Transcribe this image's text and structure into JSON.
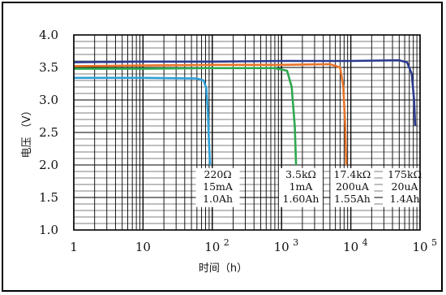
{
  "chart_data": {
    "type": "line",
    "xlabel": "时间（h）",
    "ylabel": "电压 （V）",
    "xscale": "log",
    "xlim": [
      1,
      100000
    ],
    "ylim": [
      1.0,
      4.0
    ],
    "grid": true,
    "x_ticks": [
      {
        "base": "1",
        "sup": ""
      },
      {
        "base": "10",
        "sup": ""
      },
      {
        "base": "10",
        "sup": "2"
      },
      {
        "base": "10",
        "sup": "3"
      },
      {
        "base": "10",
        "sup": "4"
      },
      {
        "base": "10",
        "sup": "5"
      }
    ],
    "y_ticks": [
      "1.0",
      "1.5",
      "2.0",
      "2.5",
      "3.0",
      "3.5",
      "4.0"
    ],
    "series": [
      {
        "color": "#2e9fd6",
        "x": [
          1,
          10,
          60,
          75,
          82,
          86,
          90,
          93
        ],
        "y": [
          3.34,
          3.34,
          3.33,
          3.3,
          3.18,
          2.85,
          2.3,
          2.0
        ]
      },
      {
        "color": "#2fa84f",
        "x": [
          1,
          10,
          100,
          800,
          1200,
          1400,
          1550,
          1620
        ],
        "y": [
          3.48,
          3.48,
          3.49,
          3.49,
          3.45,
          3.2,
          2.6,
          2.0
        ]
      },
      {
        "color": "#e8742a",
        "x": [
          1,
          10,
          100,
          1000,
          5000,
          7000,
          7800,
          8300,
          8600
        ],
        "y": [
          3.52,
          3.53,
          3.54,
          3.54,
          3.55,
          3.5,
          3.2,
          2.6,
          2.0
        ]
      },
      {
        "color": "#2b3a8e",
        "x": [
          1,
          10,
          100,
          1000,
          10000,
          50000,
          65000,
          76000,
          82000,
          85000
        ],
        "y": [
          3.58,
          3.59,
          3.59,
          3.6,
          3.6,
          3.61,
          3.58,
          3.4,
          3.0,
          2.6
        ]
      }
    ],
    "annotations": [
      {
        "lines": [
          "220Ω",
          "15mA",
          "1.0Ah"
        ],
        "anchor_x": 120
      },
      {
        "lines": [
          "3.5kΩ",
          "1mA",
          "1.60Ah"
        ],
        "anchor_x": 1900
      },
      {
        "lines": [
          "17.4kΩ",
          "200uA",
          "1.55Ah"
        ],
        "anchor_x": 10500
      },
      {
        "lines": [
          "175kΩ",
          "20uA",
          "1.4Ah"
        ],
        "anchor_x": 60000
      }
    ]
  }
}
